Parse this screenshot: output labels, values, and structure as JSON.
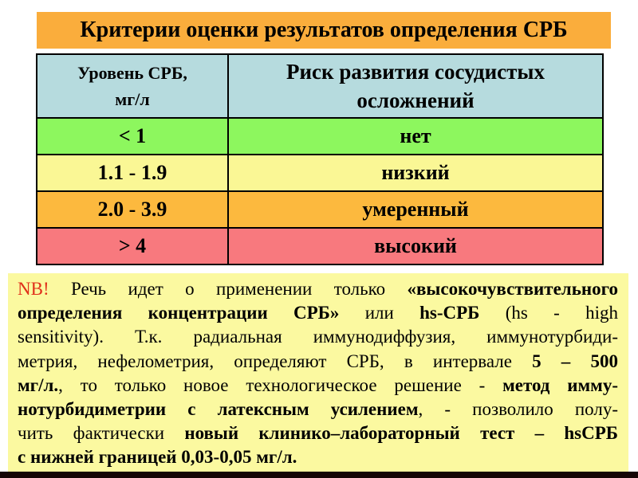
{
  "title": {
    "text": "Критерии оценки результатов определения СРБ"
  },
  "table": {
    "headers": [
      "Уровень СРБ,\nмг/л",
      "Риск развития сосудистых\nосложнений"
    ],
    "rows": [
      {
        "level": "< 1",
        "risk": "нет",
        "bg": "#8DF75E"
      },
      {
        "level": "1.1 - 1.9",
        "risk": "низкий",
        "bg": "#FAF795"
      },
      {
        "level": "2.0 - 3.9",
        "risk": "умеренный",
        "bg": "#FCB93E"
      },
      {
        "level": "> 4",
        "risk": "высокий",
        "bg": "#F8797E"
      }
    ]
  },
  "note": {
    "lines": [
      {
        "justify": true,
        "segments": [
          {
            "t": "NB!",
            "s": "r"
          },
          {
            "t": " Речь идет о применении только ",
            "s": "n"
          },
          {
            "t": "«высокочувствительного",
            "s": "b"
          }
        ]
      },
      {
        "justify": true,
        "segments": [
          {
            "t": "определения концентрации СРБ»",
            "s": "b"
          },
          {
            "t": " или ",
            "s": "n"
          },
          {
            "t": "hs-СРБ",
            "s": "b"
          },
          {
            "t": " (hs - high",
            "s": "n"
          }
        ]
      },
      {
        "justify": true,
        "segments": [
          {
            "t": "sensitivity). Т.к. радиальная иммунодиффузия, иммунотурбиди-",
            "s": "n"
          }
        ]
      },
      {
        "justify": true,
        "segments": [
          {
            "t": "метрия, нефелометрия, определяют СРБ, в интервале ",
            "s": "n"
          },
          {
            "t": "5 – 500",
            "s": "b"
          }
        ]
      },
      {
        "justify": true,
        "segments": [
          {
            "t": "мг/л.",
            "s": "b"
          },
          {
            "t": ", то только новое технологическое решение - ",
            "s": "n"
          },
          {
            "t": "метод имму-",
            "s": "b"
          }
        ]
      },
      {
        "justify": true,
        "segments": [
          {
            "t": "нотурбидиметрии с латексным усилением",
            "s": "b"
          },
          {
            "t": ", - позволило полу-",
            "s": "n"
          }
        ]
      },
      {
        "justify": true,
        "segments": [
          {
            "t": "чить фактически ",
            "s": "n"
          },
          {
            "t": "новый клинико–лабораторный тест – hsСРБ",
            "s": "b"
          }
        ]
      },
      {
        "justify": false,
        "segments": [
          {
            "t": "с нижней границей 0,03-0,05 мг/л.",
            "s": "b"
          }
        ]
      }
    ]
  },
  "colors": {
    "page_bg": "#FFFFFF",
    "title_bg": "#FAAD3C",
    "header_bg": "#B6DBDE",
    "note_bg": "#FBF9A0",
    "nb_red": "#E02F1A",
    "table_border": "#000000",
    "bottom_strip": "#150505",
    "text": "#000000"
  }
}
